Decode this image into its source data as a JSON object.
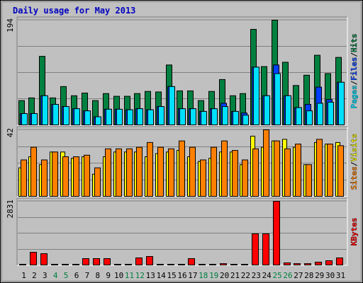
{
  "chart_data": [
    {
      "type": "bar",
      "title": "Daily usage for May 2013",
      "ylim": [
        0,
        194
      ],
      "yticks": [
        194
      ],
      "legend_separator": "/",
      "series": [
        {
          "name": "Hits",
          "color": "#008040",
          "values": [
            45,
            50,
            127,
            50,
            71,
            54,
            59,
            45,
            58,
            53,
            53,
            58,
            62,
            61,
            111,
            63,
            63,
            45,
            62,
            84,
            54,
            58,
            177,
            108,
            194,
            116,
            73,
            92,
            129,
            95,
            125
          ]
        },
        {
          "name": "Files",
          "color": "#0040ff",
          "values": [
            21,
            21,
            54,
            38,
            34,
            30,
            26,
            15,
            29,
            29,
            28,
            30,
            28,
            34,
            71,
            30,
            30,
            25,
            30,
            40,
            25,
            22,
            107,
            54,
            111,
            54,
            32,
            38,
            70,
            47,
            79
          ]
        },
        {
          "name": "Pages",
          "color": "#00e0ff",
          "values": [
            21,
            21,
            54,
            38,
            34,
            30,
            26,
            15,
            29,
            29,
            28,
            30,
            28,
            34,
            71,
            30,
            30,
            25,
            30,
            34,
            25,
            18,
            107,
            54,
            95,
            54,
            32,
            26,
            40,
            42,
            79
          ]
        }
      ]
    },
    {
      "type": "bar",
      "ylim": [
        0,
        42
      ],
      "yticks": [
        42
      ],
      "legend_separator": "/",
      "series": [
        {
          "name": "Visits",
          "color": "#ffff00",
          "values": [
            18,
            25,
            20,
            28,
            28,
            24,
            25,
            14,
            25,
            28,
            28,
            28,
            25,
            27,
            28,
            29,
            25,
            22,
            24,
            28,
            28,
            20,
            38,
            31,
            35,
            36,
            31,
            20,
            34,
            33,
            34
          ]
        },
        {
          "name": "Sites",
          "color": "#ff8000",
          "values": [
            23,
            31,
            23,
            28,
            25,
            25,
            26,
            18,
            30,
            30,
            30,
            31,
            34,
            31,
            30,
            35,
            31,
            23,
            31,
            35,
            29,
            23,
            30,
            42,
            35,
            30,
            33,
            20,
            36,
            33,
            32
          ]
        }
      ]
    },
    {
      "type": "bar",
      "ylim": [
        0,
        2831
      ],
      "yticks": [
        2831
      ],
      "categories": [
        "1",
        "2",
        "3",
        "4",
        "5",
        "6",
        "7",
        "8",
        "9",
        "10",
        "11",
        "12",
        "13",
        "14",
        "15",
        "16",
        "17",
        "18",
        "19",
        "20",
        "21",
        "22",
        "23",
        "24",
        "25",
        "26",
        "27",
        "28",
        "29",
        "30",
        "31"
      ],
      "category_colors": [
        "#000000",
        "#000000",
        "#000000",
        "#008040",
        "#008040",
        "#000000",
        "#000000",
        "#000000",
        "#000000",
        "#000000",
        "#008040",
        "#008040",
        "#000000",
        "#000000",
        "#000000",
        "#000000",
        "#000000",
        "#008040",
        "#008040",
        "#000000",
        "#000000",
        "#000000",
        "#000000",
        "#000000",
        "#008040",
        "#008040",
        "#000000",
        "#000000",
        "#000000",
        "#000000",
        "#000000"
      ],
      "series": [
        {
          "name": "KBytes",
          "color": "#ff0000",
          "values": [
            30,
            566,
            503,
            30,
            30,
            30,
            283,
            283,
            283,
            30,
            30,
            315,
            377,
            30,
            30,
            30,
            283,
            30,
            30,
            60,
            30,
            30,
            1384,
            1384,
            2831,
            94,
            60,
            60,
            126,
            189,
            315
          ]
        }
      ]
    }
  ]
}
